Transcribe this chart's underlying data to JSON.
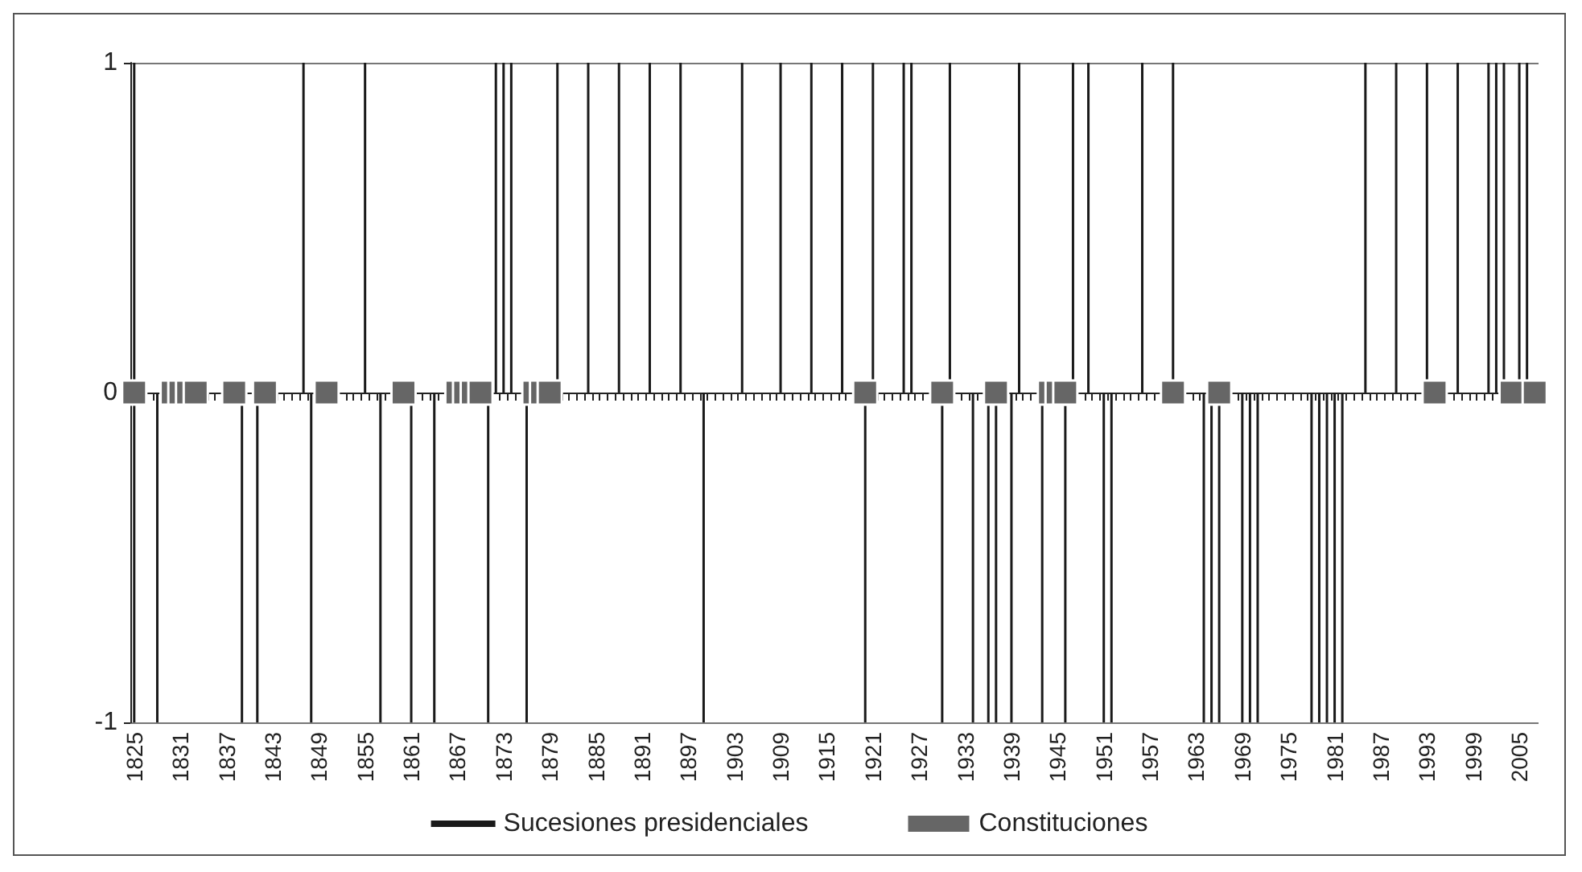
{
  "chart_data": {
    "type": "bar",
    "ylim": [
      -1,
      1
    ],
    "yticks": [
      -1,
      0,
      1
    ],
    "grid": "y",
    "legend": "bottom",
    "categories": [
      "1825",
      null,
      null,
      null,
      null,
      null,
      "1831",
      null,
      null,
      null,
      null,
      null,
      "1837",
      null,
      null,
      null,
      null,
      null,
      "1843",
      null,
      null,
      null,
      null,
      null,
      "1849",
      null,
      null,
      null,
      null,
      null,
      "1855",
      null,
      null,
      null,
      null,
      null,
      "1861",
      null,
      null,
      null,
      null,
      null,
      "1867",
      null,
      null,
      null,
      null,
      null,
      "1873",
      null,
      null,
      null,
      null,
      null,
      "1879",
      null,
      null,
      null,
      null,
      null,
      "1885",
      null,
      null,
      null,
      null,
      null,
      "1891",
      null,
      null,
      null,
      null,
      null,
      "1897",
      null,
      null,
      null,
      null,
      null,
      "1903",
      null,
      null,
      null,
      null,
      null,
      "1909",
      null,
      null,
      null,
      null,
      null,
      "1915",
      null,
      null,
      null,
      null,
      null,
      "1921",
      null,
      null,
      null,
      null,
      null,
      "1927",
      null,
      null,
      null,
      null,
      null,
      "1933",
      null,
      null,
      null,
      null,
      null,
      "1939",
      null,
      null,
      null,
      null,
      null,
      "1945",
      null,
      null,
      null,
      null,
      null,
      "1951",
      null,
      null,
      null,
      null,
      null,
      "1957",
      null,
      null,
      null,
      null,
      null,
      "1963",
      null,
      null,
      null,
      null,
      null,
      "1969",
      null,
      null,
      null,
      null,
      null,
      "1975",
      null,
      null,
      null,
      null,
      null,
      "1981",
      null,
      null,
      null,
      null,
      null,
      "1987",
      null,
      null,
      null,
      null,
      null,
      "1993",
      null,
      null,
      null,
      null,
      null,
      "1999",
      null,
      null,
      null,
      null,
      null,
      "2005",
      null,
      null
    ],
    "series": [
      {
        "name": "Sucesiones presidenciales",
        "type": "bar",
        "color": "#1a1a1a",
        "values": [
          2,
          null,
          null,
          -1,
          null,
          null,
          null,
          null,
          null,
          null,
          null,
          null,
          null,
          null,
          -1,
          null,
          -1,
          null,
          null,
          null,
          null,
          null,
          1,
          -1,
          null,
          null,
          null,
          null,
          null,
          null,
          1,
          null,
          -1,
          null,
          null,
          null,
          -1,
          null,
          null,
          -1,
          null,
          null,
          null,
          null,
          null,
          null,
          -1,
          1,
          1,
          1,
          null,
          -1,
          null,
          null,
          null,
          1,
          null,
          null,
          null,
          1,
          null,
          null,
          null,
          1,
          null,
          null,
          null,
          1,
          null,
          null,
          null,
          1,
          null,
          null,
          -1,
          null,
          null,
          null,
          null,
          1,
          null,
          null,
          null,
          null,
          1,
          null,
          null,
          null,
          1,
          null,
          null,
          null,
          1,
          null,
          null,
          -1,
          1,
          null,
          null,
          null,
          1,
          1,
          null,
          null,
          null,
          -1,
          1,
          null,
          null,
          -1,
          null,
          -1,
          -1,
          null,
          -1,
          1,
          null,
          null,
          -1,
          null,
          null,
          -1,
          1,
          null,
          1,
          null,
          -1,
          -1,
          null,
          null,
          null,
          1,
          null,
          null,
          null,
          1,
          null,
          null,
          null,
          -1,
          -1,
          -1,
          null,
          null,
          -1,
          -1,
          -1,
          null,
          null,
          null,
          null,
          null,
          null,
          -1,
          -1,
          -1,
          -1,
          -1,
          null,
          null,
          1,
          null,
          null,
          null,
          1,
          null,
          null,
          null,
          1,
          null,
          null,
          null,
          1,
          null,
          null,
          null,
          1,
          1,
          1,
          null,
          1,
          1,
          null
        ],
        "base": [
          -1,
          null,
          null,
          0,
          null,
          null,
          null,
          null,
          null,
          null,
          null,
          null,
          null,
          null,
          0,
          null,
          0,
          null,
          null,
          null,
          null,
          null,
          0,
          0,
          null,
          null,
          null,
          null,
          null,
          null,
          0,
          null,
          0,
          null,
          null,
          null,
          0,
          null,
          null,
          0,
          null,
          null,
          null,
          null,
          null,
          null,
          0,
          0,
          0,
          0,
          null,
          0,
          null,
          null,
          null,
          0,
          null,
          null,
          null,
          0,
          null,
          null,
          null,
          0,
          null,
          null,
          null,
          0,
          null,
          null,
          null,
          0,
          null,
          null,
          0,
          null,
          null,
          null,
          null,
          0,
          null,
          null,
          null,
          null,
          0,
          null,
          null,
          null,
          0,
          null,
          null,
          null,
          0,
          null,
          null,
          0,
          0,
          null,
          null,
          null,
          0,
          0,
          null,
          null,
          null,
          0,
          0,
          null,
          null,
          0,
          null,
          0,
          0,
          null,
          0,
          0,
          null,
          null,
          0,
          null,
          null,
          0,
          0,
          null,
          0,
          null,
          0,
          0,
          null,
          null,
          null,
          0,
          null,
          null,
          null,
          0,
          null,
          null,
          null,
          0,
          0,
          0,
          null,
          null,
          0,
          0,
          0,
          null,
          null,
          null,
          null,
          null,
          null,
          0,
          0,
          0,
          0,
          0,
          null,
          null,
          0,
          null,
          null,
          null,
          0,
          null,
          null,
          null,
          0,
          null,
          null,
          null,
          0,
          null,
          null,
          null,
          0,
          0,
          0,
          null,
          0,
          0,
          null
        ]
      },
      {
        "name": "Constituciones",
        "type": "scatter",
        "color": "#666666",
        "marker": "square",
        "values": [
          0,
          null,
          null,
          null,
          null,
          0,
          0,
          0,
          0,
          null,
          null,
          null,
          null,
          0,
          null,
          null,
          null,
          0,
          null,
          null,
          null,
          null,
          null,
          null,
          null,
          0,
          null,
          null,
          null,
          null,
          null,
          null,
          null,
          null,
          null,
          0,
          null,
          null,
          null,
          null,
          null,
          null,
          0,
          0,
          0,
          0,
          null,
          null,
          null,
          null,
          null,
          null,
          0,
          0,
          0,
          null,
          null,
          null,
          null,
          null,
          null,
          null,
          null,
          null,
          null,
          null,
          null,
          null,
          null,
          null,
          null,
          null,
          null,
          null,
          null,
          null,
          null,
          null,
          null,
          null,
          null,
          null,
          null,
          null,
          null,
          null,
          null,
          null,
          null,
          null,
          null,
          null,
          null,
          null,
          null,
          0,
          null,
          null,
          null,
          null,
          null,
          null,
          null,
          null,
          null,
          0,
          null,
          null,
          null,
          null,
          null,
          null,
          0,
          null,
          null,
          null,
          null,
          null,
          null,
          0,
          0,
          0,
          null,
          null,
          null,
          null,
          null,
          null,
          null,
          null,
          null,
          null,
          null,
          null,
          null,
          0,
          null,
          null,
          null,
          null,
          null,
          0,
          null,
          null,
          null,
          null,
          null,
          null,
          null,
          null,
          null,
          null,
          null,
          null,
          null,
          null,
          null,
          null,
          null,
          null,
          null,
          null,
          null,
          null,
          null,
          null,
          null,
          null,
          null,
          0,
          null,
          null,
          null,
          null,
          null,
          null,
          null,
          null,
          null,
          0,
          null,
          null,
          0
        ]
      }
    ]
  }
}
